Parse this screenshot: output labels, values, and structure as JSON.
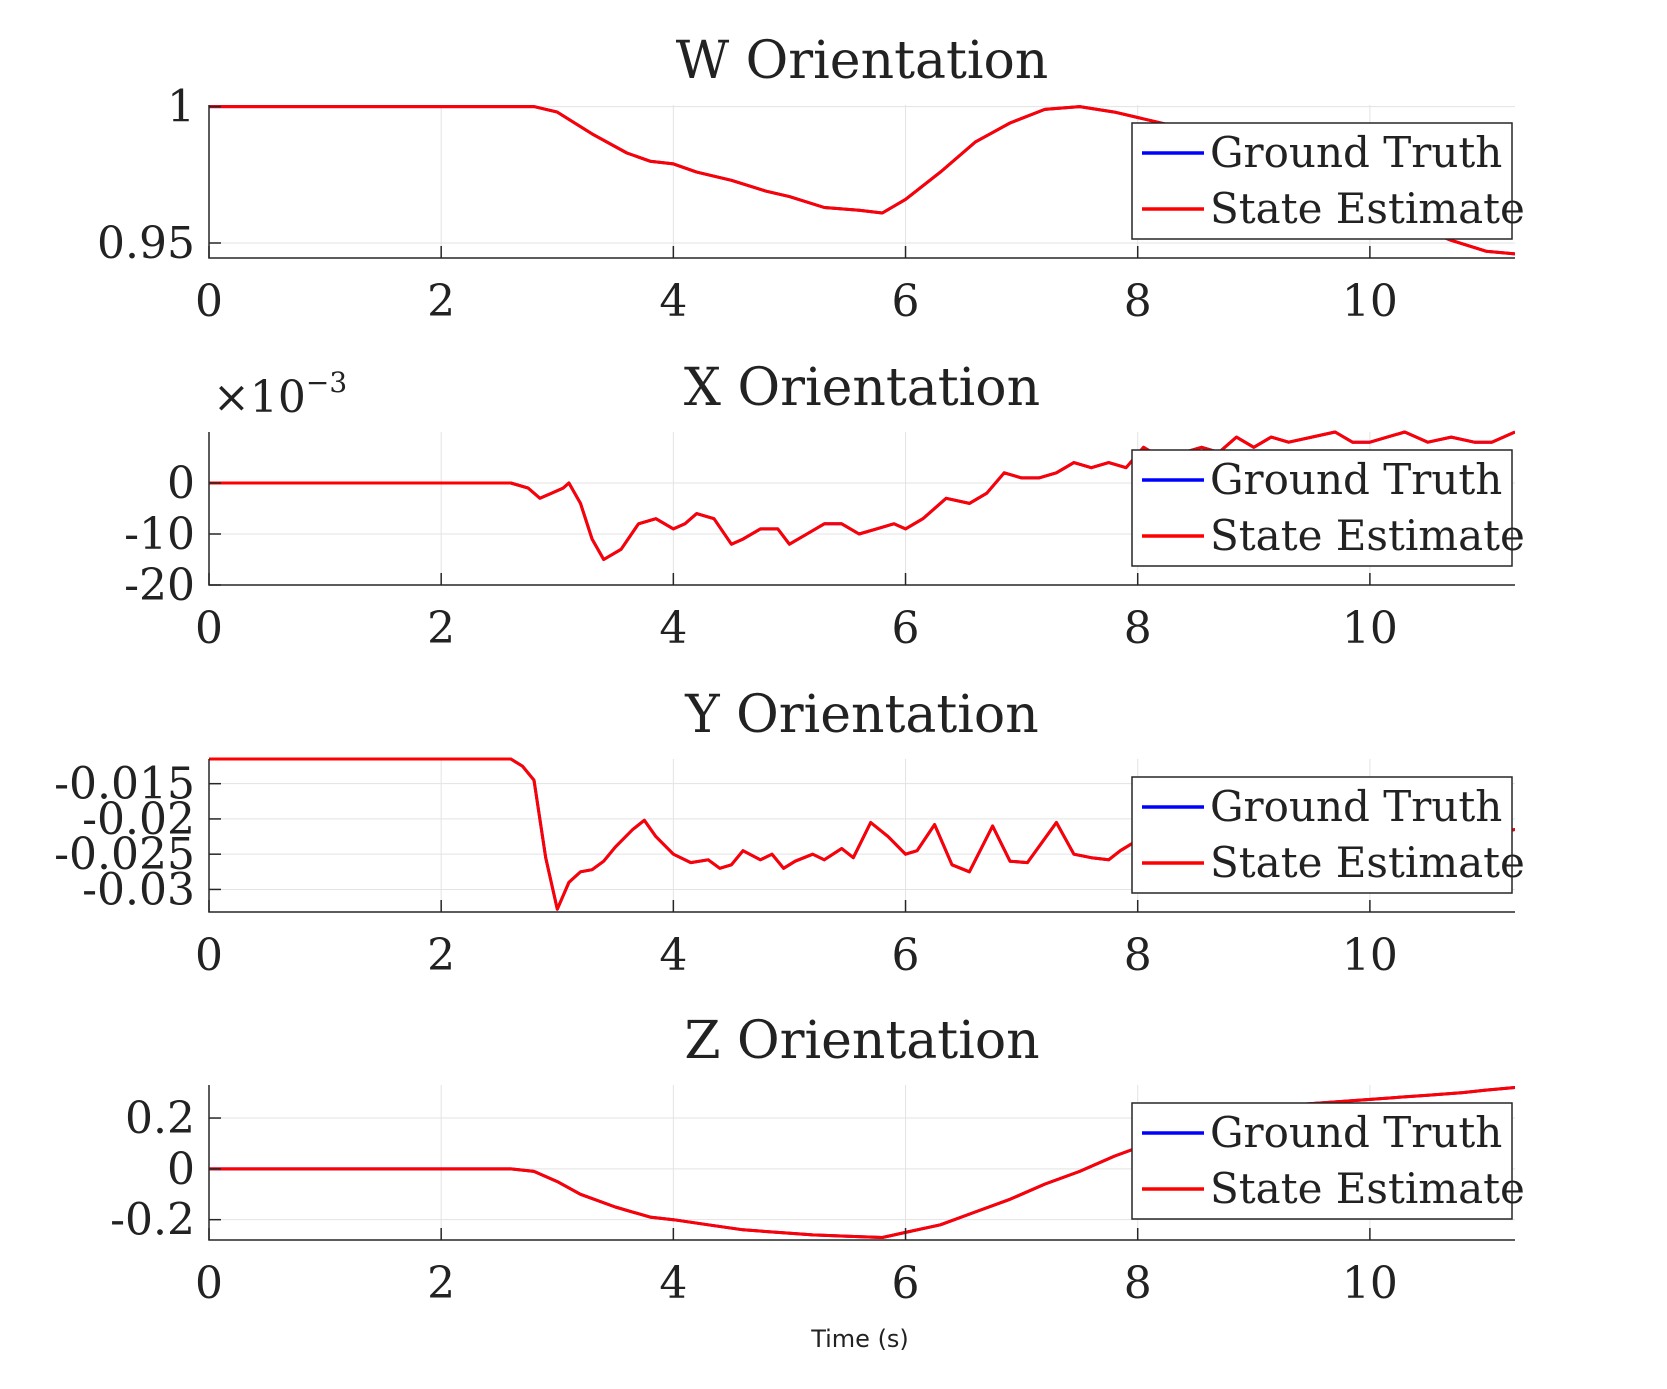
{
  "colors": {
    "ground_truth": "#0000ff",
    "state_estimate": "#ff0000"
  },
  "xlabel": "Time (s)",
  "chart_data": [
    {
      "type": "line",
      "title": "W Orientation",
      "xlim": [
        0,
        11.25
      ],
      "ylim": [
        0.9445,
        1.0006
      ],
      "xticks": [
        0,
        2,
        4,
        6,
        8,
        10
      ],
      "xtick_labels": [
        "0",
        "2",
        "4",
        "6",
        "8",
        "10"
      ],
      "yticks": [
        0.95,
        1
      ],
      "ytick_labels": [
        "0.95",
        "1"
      ],
      "multiplier": "",
      "legend": {
        "entries": [
          "Ground Truth",
          "State Estimate"
        ],
        "position": "top-right"
      },
      "grid": true,
      "series": [
        {
          "name": "Ground Truth",
          "x": [
            0,
            2.8,
            3.0,
            3.3,
            3.6,
            3.8,
            4.0,
            4.2,
            4.5,
            4.8,
            5.0,
            5.3,
            5.6,
            5.8,
            6.0,
            6.3,
            6.6,
            6.9,
            7.2,
            7.5,
            7.8,
            8.0,
            8.3,
            8.6,
            8.9,
            9.2,
            9.5,
            9.8,
            10.1,
            10.4,
            10.7,
            11.0,
            11.25
          ],
          "y": [
            1.0,
            1.0,
            0.998,
            0.99,
            0.983,
            0.98,
            0.979,
            0.976,
            0.973,
            0.969,
            0.967,
            0.963,
            0.962,
            0.961,
            0.966,
            0.976,
            0.987,
            0.994,
            0.999,
            1.0,
            0.998,
            0.996,
            0.993,
            0.989,
            0.984,
            0.979,
            0.973,
            0.967,
            0.962,
            0.956,
            0.951,
            0.947,
            0.946
          ]
        },
        {
          "name": "State Estimate",
          "x": [
            0,
            2.8,
            3.0,
            3.3,
            3.6,
            3.8,
            4.0,
            4.2,
            4.5,
            4.8,
            5.0,
            5.3,
            5.6,
            5.8,
            6.0,
            6.3,
            6.6,
            6.9,
            7.2,
            7.5,
            7.8,
            8.0,
            8.3,
            8.6,
            8.9,
            9.2,
            9.5,
            9.8,
            10.1,
            10.4,
            10.7,
            11.0,
            11.25
          ],
          "y": [
            1.0,
            1.0,
            0.998,
            0.99,
            0.983,
            0.98,
            0.979,
            0.976,
            0.973,
            0.969,
            0.967,
            0.963,
            0.962,
            0.961,
            0.966,
            0.976,
            0.987,
            0.994,
            0.999,
            1.0,
            0.998,
            0.996,
            0.993,
            0.989,
            0.984,
            0.979,
            0.973,
            0.967,
            0.962,
            0.956,
            0.951,
            0.947,
            0.946
          ]
        }
      ]
    },
    {
      "type": "line",
      "title": "X Orientation",
      "xlim": [
        0,
        11.25
      ],
      "ylim": [
        -20,
        10
      ],
      "xticks": [
        0,
        2,
        4,
        6,
        8,
        10
      ],
      "xtick_labels": [
        "0",
        "2",
        "4",
        "6",
        "8",
        "10"
      ],
      "yticks": [
        -20,
        -10,
        0
      ],
      "ytick_labels": [
        "-20",
        "-10",
        "0"
      ],
      "multiplier": "×10",
      "multiplier_exponent": "−3",
      "legend": {
        "entries": [
          "Ground Truth",
          "State Estimate"
        ],
        "position": "top-right"
      },
      "grid": true,
      "series": [
        {
          "name": "Ground Truth",
          "x": [
            0,
            2.6,
            2.75,
            2.85,
            2.95,
            3.05,
            3.1,
            3.2,
            3.3,
            3.4,
            3.55,
            3.7,
            3.85,
            4.0,
            4.1,
            4.2,
            4.35,
            4.5,
            4.6,
            4.75,
            4.9,
            5.0,
            5.15,
            5.3,
            5.45,
            5.6,
            5.75,
            5.9,
            6.0,
            6.15,
            6.35,
            6.55,
            6.7,
            6.85,
            7.0,
            7.15,
            7.3,
            7.45,
            7.6,
            7.75,
            7.9,
            8.05,
            8.2,
            8.4,
            8.55,
            8.7,
            8.85,
            9.0,
            9.15,
            9.3,
            9.5,
            9.7,
            9.85,
            10.0,
            10.15,
            10.3,
            10.5,
            10.7,
            10.9,
            11.05,
            11.15,
            11.25
          ],
          "y": [
            0,
            0,
            -1,
            -3,
            -2,
            -1,
            0,
            -4,
            -11,
            -15,
            -13,
            -8,
            -7,
            -9,
            -8,
            -6,
            -7,
            -12,
            -11,
            -9,
            -9,
            -12,
            -10,
            -8,
            -8,
            -10,
            -9,
            -8,
            -9,
            -7,
            -3,
            -4,
            -2,
            2,
            1,
            1,
            2,
            4,
            3,
            4,
            3,
            7,
            5,
            6,
            7,
            6,
            9,
            7,
            9,
            8,
            9,
            10,
            8,
            8,
            9,
            10,
            8,
            9,
            8,
            8,
            9,
            10
          ]
        },
        {
          "name": "State Estimate",
          "x": [
            0,
            2.6,
            2.75,
            2.85,
            2.95,
            3.05,
            3.1,
            3.2,
            3.3,
            3.4,
            3.55,
            3.7,
            3.85,
            4.0,
            4.1,
            4.2,
            4.35,
            4.5,
            4.6,
            4.75,
            4.9,
            5.0,
            5.15,
            5.3,
            5.45,
            5.6,
            5.75,
            5.9,
            6.0,
            6.15,
            6.35,
            6.55,
            6.7,
            6.85,
            7.0,
            7.15,
            7.3,
            7.45,
            7.6,
            7.75,
            7.9,
            8.05,
            8.2,
            8.4,
            8.55,
            8.7,
            8.85,
            9.0,
            9.15,
            9.3,
            9.5,
            9.7,
            9.85,
            10.0,
            10.15,
            10.3,
            10.5,
            10.7,
            10.9,
            11.05,
            11.15,
            11.25
          ],
          "y": [
            0,
            0,
            -1,
            -3,
            -2,
            -1,
            0,
            -4,
            -11,
            -15,
            -13,
            -8,
            -7,
            -9,
            -8,
            -6,
            -7,
            -12,
            -11,
            -9,
            -9,
            -12,
            -10,
            -8,
            -8,
            -10,
            -9,
            -8,
            -9,
            -7,
            -3,
            -4,
            -2,
            2,
            1,
            1,
            2,
            4,
            3,
            4,
            3,
            7,
            5,
            6,
            7,
            6,
            9,
            7,
            9,
            8,
            9,
            10,
            8,
            8,
            9,
            10,
            8,
            9,
            8,
            8,
            9,
            10
          ]
        }
      ]
    },
    {
      "type": "line",
      "title": "Y Orientation",
      "xlim": [
        0,
        11.25
      ],
      "ylim": [
        -0.0332,
        -0.0115
      ],
      "xticks": [
        0,
        2,
        4,
        6,
        8,
        10
      ],
      "xtick_labels": [
        "0",
        "2",
        "4",
        "6",
        "8",
        "10"
      ],
      "yticks": [
        -0.03,
        -0.025,
        -0.02,
        -0.015
      ],
      "ytick_labels": [
        "-0.03",
        "-0.025",
        "-0.02",
        "-0.015"
      ],
      "multiplier": "",
      "legend": {
        "entries": [
          "Ground Truth",
          "State Estimate"
        ],
        "position": "top-right"
      },
      "grid": true,
      "series": [
        {
          "name": "Ground Truth",
          "x": [
            0,
            2.6,
            2.7,
            2.8,
            2.9,
            3.0,
            3.1,
            3.2,
            3.3,
            3.4,
            3.5,
            3.65,
            3.75,
            3.85,
            4.0,
            4.15,
            4.3,
            4.4,
            4.5,
            4.6,
            4.75,
            4.85,
            4.95,
            5.05,
            5.2,
            5.3,
            5.45,
            5.55,
            5.7,
            5.85,
            6.0,
            6.1,
            6.25,
            6.4,
            6.55,
            6.75,
            6.9,
            7.05,
            7.3,
            7.45,
            7.6,
            7.75,
            7.85,
            8.0,
            8.15,
            8.3,
            8.45,
            8.6,
            8.75,
            8.9,
            9.05,
            9.2,
            9.35,
            9.5,
            9.65,
            9.8,
            9.95,
            10.1,
            10.25,
            10.4,
            10.55,
            10.7,
            10.85,
            11.0,
            11.15,
            11.25
          ],
          "y": [
            -0.0115,
            -0.0115,
            -0.0125,
            -0.0145,
            -0.0255,
            -0.0328,
            -0.029,
            -0.0275,
            -0.0272,
            -0.026,
            -0.024,
            -0.0215,
            -0.0202,
            -0.0225,
            -0.025,
            -0.0262,
            -0.0258,
            -0.027,
            -0.0265,
            -0.0245,
            -0.0258,
            -0.025,
            -0.027,
            -0.026,
            -0.025,
            -0.0258,
            -0.0242,
            -0.0255,
            -0.0205,
            -0.0225,
            -0.025,
            -0.0245,
            -0.0208,
            -0.0265,
            -0.0275,
            -0.021,
            -0.026,
            -0.0262,
            -0.0205,
            -0.025,
            -0.0255,
            -0.0258,
            -0.0245,
            -0.023,
            -0.0225,
            -0.0235,
            -0.022,
            -0.0215,
            -0.0225,
            -0.0225,
            -0.0215,
            -0.023,
            -0.0215,
            -0.0225,
            -0.0215,
            -0.022,
            -0.0215,
            -0.0225,
            -0.0215,
            -0.0225,
            -0.0205,
            -0.021,
            -0.0225,
            -0.0205,
            -0.0218,
            -0.0215
          ]
        },
        {
          "name": "State Estimate",
          "x": [
            0,
            2.6,
            2.7,
            2.8,
            2.9,
            3.0,
            3.1,
            3.2,
            3.3,
            3.4,
            3.5,
            3.65,
            3.75,
            3.85,
            4.0,
            4.15,
            4.3,
            4.4,
            4.5,
            4.6,
            4.75,
            4.85,
            4.95,
            5.05,
            5.2,
            5.3,
            5.45,
            5.55,
            5.7,
            5.85,
            6.0,
            6.1,
            6.25,
            6.4,
            6.55,
            6.75,
            6.9,
            7.05,
            7.3,
            7.45,
            7.6,
            7.75,
            7.85,
            8.0,
            8.15,
            8.3,
            8.45,
            8.6,
            8.75,
            8.9,
            9.05,
            9.2,
            9.35,
            9.5,
            9.65,
            9.8,
            9.95,
            10.1,
            10.25,
            10.4,
            10.55,
            10.7,
            10.85,
            11.0,
            11.15,
            11.25
          ],
          "y": [
            -0.0115,
            -0.0115,
            -0.0125,
            -0.0145,
            -0.0255,
            -0.0328,
            -0.029,
            -0.0275,
            -0.0272,
            -0.026,
            -0.024,
            -0.0215,
            -0.0202,
            -0.0225,
            -0.025,
            -0.0262,
            -0.0258,
            -0.027,
            -0.0265,
            -0.0245,
            -0.0258,
            -0.025,
            -0.027,
            -0.026,
            -0.025,
            -0.0258,
            -0.0242,
            -0.0255,
            -0.0205,
            -0.0225,
            -0.025,
            -0.0245,
            -0.0208,
            -0.0265,
            -0.0275,
            -0.021,
            -0.026,
            -0.0262,
            -0.0205,
            -0.025,
            -0.0255,
            -0.0258,
            -0.0245,
            -0.023,
            -0.0225,
            -0.0235,
            -0.022,
            -0.0215,
            -0.0225,
            -0.0225,
            -0.0215,
            -0.023,
            -0.0215,
            -0.0225,
            -0.0215,
            -0.022,
            -0.0215,
            -0.0225,
            -0.0215,
            -0.0225,
            -0.0205,
            -0.021,
            -0.0225,
            -0.0205,
            -0.0218,
            -0.0215
          ]
        }
      ]
    },
    {
      "type": "line",
      "title": "Z Orientation",
      "xlim": [
        0,
        11.25
      ],
      "ylim": [
        -0.28,
        0.33
      ],
      "xticks": [
        0,
        2,
        4,
        6,
        8,
        10
      ],
      "xtick_labels": [
        "0",
        "2",
        "4",
        "6",
        "8",
        "10"
      ],
      "yticks": [
        -0.2,
        0,
        0.2
      ],
      "ytick_labels": [
        "-0.2",
        "0",
        "0.2"
      ],
      "multiplier": "",
      "legend": {
        "entries": [
          "Ground Truth",
          "State Estimate"
        ],
        "position": "top-right"
      },
      "grid": true,
      "series": [
        {
          "name": "Ground Truth",
          "x": [
            0,
            2.6,
            2.8,
            3.0,
            3.2,
            3.5,
            3.8,
            4.0,
            4.3,
            4.6,
            4.9,
            5.2,
            5.5,
            5.8,
            6.0,
            6.3,
            6.6,
            6.9,
            7.2,
            7.5,
            7.8,
            8.1,
            8.4,
            8.7,
            9.0,
            9.3,
            9.6,
            9.9,
            10.2,
            10.5,
            10.8,
            11.0,
            11.25
          ],
          "y": [
            0,
            0,
            -0.01,
            -0.05,
            -0.1,
            -0.15,
            -0.19,
            -0.2,
            -0.22,
            -0.24,
            -0.25,
            -0.26,
            -0.265,
            -0.27,
            -0.25,
            -0.22,
            -0.17,
            -0.12,
            -0.06,
            -0.01,
            0.05,
            0.1,
            0.15,
            0.19,
            0.22,
            0.25,
            0.26,
            0.27,
            0.28,
            0.29,
            0.3,
            0.31,
            0.32
          ]
        },
        {
          "name": "State Estimate",
          "x": [
            0,
            2.6,
            2.8,
            3.0,
            3.2,
            3.5,
            3.8,
            4.0,
            4.3,
            4.6,
            4.9,
            5.2,
            5.5,
            5.8,
            6.0,
            6.3,
            6.6,
            6.9,
            7.2,
            7.5,
            7.8,
            8.1,
            8.4,
            8.7,
            9.0,
            9.3,
            9.6,
            9.9,
            10.2,
            10.5,
            10.8,
            11.0,
            11.25
          ],
          "y": [
            0,
            0,
            -0.01,
            -0.05,
            -0.1,
            -0.15,
            -0.19,
            -0.2,
            -0.22,
            -0.24,
            -0.25,
            -0.26,
            -0.265,
            -0.27,
            -0.25,
            -0.22,
            -0.17,
            -0.12,
            -0.06,
            -0.01,
            0.05,
            0.1,
            0.15,
            0.19,
            0.22,
            0.25,
            0.26,
            0.27,
            0.28,
            0.29,
            0.3,
            0.31,
            0.32
          ]
        }
      ]
    }
  ]
}
